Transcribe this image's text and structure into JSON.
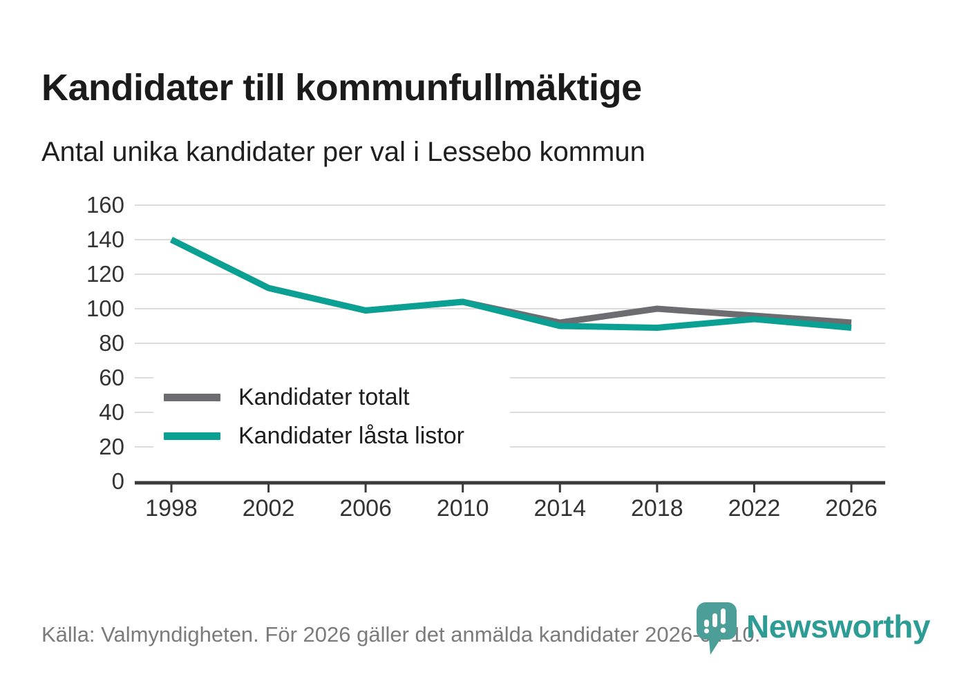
{
  "header": {
    "title": "Kandidater till kommunfullmäktige",
    "subtitle": "Antal unika kandidater per val i Lessebo kommun"
  },
  "chart_data": {
    "type": "line",
    "title": "Kandidater till kommunfullmäktige",
    "subtitle": "Antal unika kandidater per val i Lessebo kommun",
    "categories": [
      "1998",
      "2002",
      "2006",
      "2010",
      "2014",
      "2018",
      "2022",
      "2026"
    ],
    "series": [
      {
        "name": "Kandidater totalt",
        "color": "#6c6c71",
        "values": [
          140,
          112,
          99,
          104,
          92,
          100,
          96,
          92
        ]
      },
      {
        "name": "Kandidater låsta listor",
        "color": "#0aa094",
        "values": [
          140,
          112,
          99,
          104,
          90,
          89,
          94,
          89
        ]
      }
    ],
    "ylim": [
      0,
      160
    ],
    "yticks": [
      0,
      20,
      40,
      60,
      80,
      100,
      120,
      140,
      160
    ],
    "grid": true,
    "legend_position": "inside-left",
    "xlabel": "",
    "ylabel": ""
  },
  "footer": {
    "source": "Källa: Valmyndigheten. För 2026 gäller det anmälda kandidater 2026-04-10."
  },
  "logo": {
    "wordmark": "Newsworthy",
    "icon": "newsworthy-pin-barchart-icon",
    "wordmark_color": "#2d9c95",
    "icon_color": "#4b9f98"
  },
  "colors": {
    "grid": "#dcdcdc",
    "axis": "#3a3a3a",
    "text": "#1b1b1b",
    "muted": "#7b7b7b"
  }
}
